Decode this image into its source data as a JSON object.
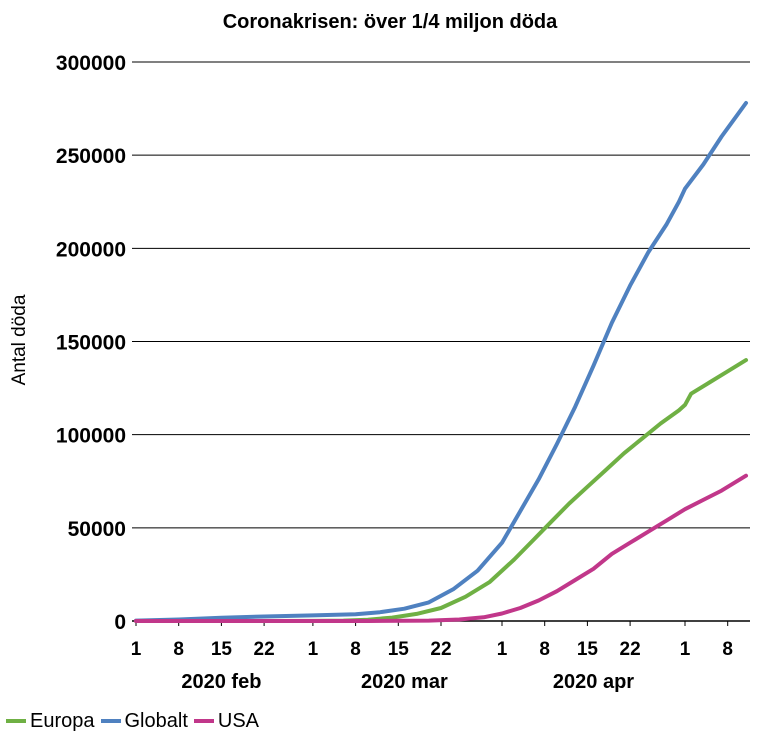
{
  "chart_data": {
    "type": "line",
    "title": "Coronakrisen: över 1/4 miljon döda",
    "ylabel": "Antal döda",
    "ylim": [
      0,
      300000
    ],
    "yticks": [
      0,
      50000,
      100000,
      150000,
      200000,
      250000,
      300000
    ],
    "ytick_labels": [
      "0",
      "50000",
      "100000",
      "150000",
      "200000",
      "250000",
      "300000"
    ],
    "xlim": [
      "2020-02-01",
      "2020-05-11"
    ],
    "xticks": [
      {
        "label": "1",
        "date": "2020-02-01"
      },
      {
        "label": "8",
        "date": "2020-02-08"
      },
      {
        "label": "15",
        "date": "2020-02-15"
      },
      {
        "label": "22",
        "date": "2020-02-22"
      },
      {
        "label": "1",
        "date": "2020-03-01"
      },
      {
        "label": "8",
        "date": "2020-03-08"
      },
      {
        "label": "15",
        "date": "2020-03-15"
      },
      {
        "label": "22",
        "date": "2020-03-22"
      },
      {
        "label": "1",
        "date": "2020-04-01"
      },
      {
        "label": "8",
        "date": "2020-04-08"
      },
      {
        "label": "15",
        "date": "2020-04-15"
      },
      {
        "label": "22",
        "date": "2020-04-22"
      },
      {
        "label": "1",
        "date": "2020-05-01"
      },
      {
        "label": "8",
        "date": "2020-05-08"
      }
    ],
    "month_labels": [
      {
        "label": "2020 feb",
        "date": "2020-02-15"
      },
      {
        "label": "2020 mar",
        "date": "2020-03-16"
      },
      {
        "label": "2020 apr",
        "date": "2020-04-16"
      }
    ],
    "grid": true,
    "legend_position": "bottom-left",
    "series": [
      {
        "name": "Europa",
        "color": "#6fb044",
        "points": [
          [
            "2020-02-01",
            0
          ],
          [
            "2020-02-20",
            0
          ],
          [
            "2020-03-01",
            30
          ],
          [
            "2020-03-06",
            200
          ],
          [
            "2020-03-10",
            700
          ],
          [
            "2020-03-14",
            1800
          ],
          [
            "2020-03-18",
            3800
          ],
          [
            "2020-03-22",
            7000
          ],
          [
            "2020-03-26",
            13000
          ],
          [
            "2020-03-30",
            21000
          ],
          [
            "2020-04-03",
            33000
          ],
          [
            "2020-04-06",
            43000
          ],
          [
            "2020-04-09",
            53000
          ],
          [
            "2020-04-12",
            63000
          ],
          [
            "2020-04-15",
            72000
          ],
          [
            "2020-04-18",
            81000
          ],
          [
            "2020-04-21",
            90000
          ],
          [
            "2020-04-24",
            98000
          ],
          [
            "2020-04-27",
            106000
          ],
          [
            "2020-04-30",
            113000
          ],
          [
            "2020-05-01",
            116000
          ],
          [
            "2020-05-02",
            122000
          ],
          [
            "2020-05-05",
            128000
          ],
          [
            "2020-05-08",
            134000
          ],
          [
            "2020-05-11",
            140000
          ]
        ]
      },
      {
        "name": "Globalt",
        "color": "#4f81c0",
        "points": [
          [
            "2020-02-01",
            200
          ],
          [
            "2020-02-08",
            800
          ],
          [
            "2020-02-15",
            1700
          ],
          [
            "2020-02-22",
            2400
          ],
          [
            "2020-03-01",
            3000
          ],
          [
            "2020-03-08",
            3600
          ],
          [
            "2020-03-12",
            4700
          ],
          [
            "2020-03-16",
            6600
          ],
          [
            "2020-03-20",
            10000
          ],
          [
            "2020-03-24",
            17000
          ],
          [
            "2020-03-28",
            27000
          ],
          [
            "2020-04-01",
            42000
          ],
          [
            "2020-04-04",
            59000
          ],
          [
            "2020-04-07",
            76000
          ],
          [
            "2020-04-10",
            95000
          ],
          [
            "2020-04-13",
            115000
          ],
          [
            "2020-04-16",
            137000
          ],
          [
            "2020-04-19",
            160000
          ],
          [
            "2020-04-22",
            180000
          ],
          [
            "2020-04-25",
            198000
          ],
          [
            "2020-04-28",
            213000
          ],
          [
            "2020-04-30",
            225000
          ],
          [
            "2020-05-01",
            232000
          ],
          [
            "2020-05-04",
            245000
          ],
          [
            "2020-05-07",
            260000
          ],
          [
            "2020-05-11",
            278000
          ]
        ]
      },
      {
        "name": "USA",
        "color": "#c1378a",
        "points": [
          [
            "2020-02-01",
            0
          ],
          [
            "2020-03-10",
            0
          ],
          [
            "2020-03-20",
            200
          ],
          [
            "2020-03-25",
            800
          ],
          [
            "2020-03-29",
            2000
          ],
          [
            "2020-04-01",
            4000
          ],
          [
            "2020-04-04",
            7000
          ],
          [
            "2020-04-07",
            11000
          ],
          [
            "2020-04-10",
            16000
          ],
          [
            "2020-04-13",
            22000
          ],
          [
            "2020-04-16",
            28000
          ],
          [
            "2020-04-19",
            36000
          ],
          [
            "2020-04-22",
            42000
          ],
          [
            "2020-04-25",
            48000
          ],
          [
            "2020-04-28",
            54000
          ],
          [
            "2020-05-01",
            60000
          ],
          [
            "2020-05-04",
            65000
          ],
          [
            "2020-05-07",
            70000
          ],
          [
            "2020-05-11",
            78000
          ]
        ]
      }
    ]
  }
}
